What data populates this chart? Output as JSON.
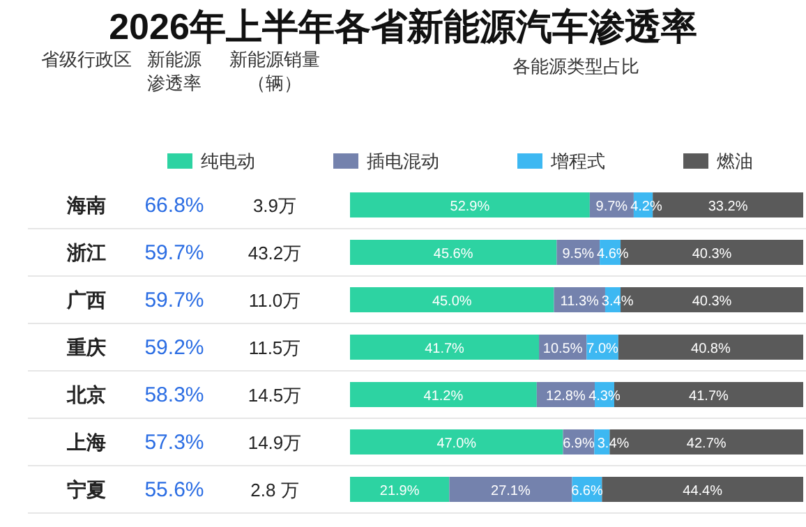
{
  "chart_data": [
    {
      "type": "other",
      "title": "2026年上半年各省新能源汽车渗透率"
    },
    {
      "type": "other",
      "title": "新能源渗透率",
      "annotations": [
        "66.8%",
        "59.7%",
        "59.7%",
        "59.2%",
        "58.3%",
        "57.3%",
        "55.6%"
      ]
    },
    {
      "type": "other",
      "title": "新能源销量（辆）",
      "annotations": [
        "3.9万",
        "43.2万",
        "11.0万",
        "11.5万",
        "14.5万",
        "14.9万",
        "2.8 万"
      ]
    },
    {
      "type": "bar",
      "title": "各能源类型占比",
      "ylabel": "省级行政区",
      "orientation": "horizontal",
      "stacked": true,
      "legend": "top",
      "categories": [
        "海南",
        "浙江",
        "广西",
        "重庆",
        "北京",
        "上海",
        "宁夏"
      ],
      "series": [
        {
          "name": "纯电动",
          "color": "#2dd3a2",
          "values": [
            52.9,
            45.6,
            45.0,
            41.7,
            41.2,
            47.0,
            21.9
          ],
          "value_labels": [
            "52.9%",
            "45.6%",
            "45.0%",
            "41.7%",
            "41.2%",
            "47.0%",
            "21.9%"
          ]
        },
        {
          "name": "插电混动",
          "color": "#7482ad",
          "values": [
            9.7,
            9.5,
            11.3,
            10.5,
            12.8,
            6.9,
            27.1
          ],
          "value_labels": [
            "9.7%",
            "9.5%",
            "11.3%",
            "10.5%",
            "12.8%",
            "6.9%",
            "27.1%"
          ]
        },
        {
          "name": "增程式",
          "color": "#3db8f2",
          "values": [
            4.2,
            4.6,
            3.4,
            7.0,
            4.3,
            3.4,
            6.6
          ],
          "value_labels": [
            "4.2%",
            "4.6%",
            "3.4%",
            "7.0%",
            "4.3%",
            "3.4%",
            "6.6%"
          ]
        },
        {
          "name": "燃油",
          "color": "#5a5a5a",
          "values": [
            33.2,
            40.3,
            40.3,
            40.8,
            41.7,
            42.7,
            44.4
          ],
          "value_labels": [
            "33.2%",
            "40.3%",
            "40.3%",
            "40.8%",
            "41.7%",
            "42.7%",
            "44.4%"
          ]
        }
      ]
    }
  ]
}
